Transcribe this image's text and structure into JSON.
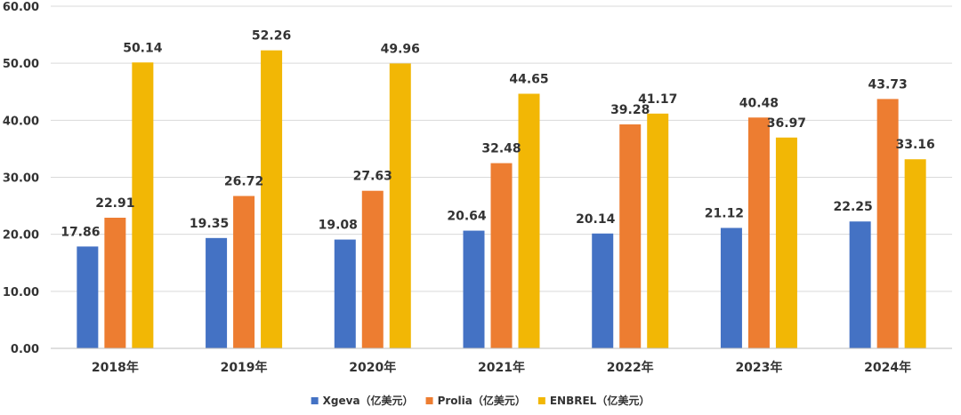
{
  "chart_data": {
    "type": "bar",
    "title": "",
    "xlabel": "",
    "ylabel": "",
    "ylim": [
      0,
      60
    ],
    "y_ticks": [
      "0.00",
      "10.00",
      "20.00",
      "30.00",
      "40.00",
      "50.00",
      "60.00"
    ],
    "grid": true,
    "legend_position": "bottom",
    "categories": [
      "2018年",
      "2019年",
      "2020年",
      "2021年",
      "2022年",
      "2023年",
      "2024年"
    ],
    "series": [
      {
        "name": "Xgeva（亿美元）",
        "color": "#4472C4",
        "values": [
          17.86,
          19.35,
          19.08,
          20.64,
          20.14,
          21.12,
          22.25
        ],
        "labels": [
          "17.86",
          "19.35",
          "19.08",
          "20.64",
          "20.14",
          "21.12",
          "22.25"
        ]
      },
      {
        "name": "Prolia（亿美元）",
        "color": "#ED7D31",
        "values": [
          22.91,
          26.72,
          27.63,
          32.48,
          39.28,
          40.48,
          43.73
        ],
        "labels": [
          "22.91",
          "26.72",
          "27.63",
          "32.48",
          "39.28",
          "40.48",
          "43.73"
        ]
      },
      {
        "name": "ENBREL（亿美元）",
        "color": "#F2B705",
        "values": [
          50.14,
          52.26,
          49.96,
          44.65,
          41.17,
          36.97,
          33.16
        ],
        "labels": [
          "50.14",
          "52.26",
          "49.96",
          "44.65",
          "41.17",
          "36.97",
          "33.16"
        ]
      }
    ]
  }
}
